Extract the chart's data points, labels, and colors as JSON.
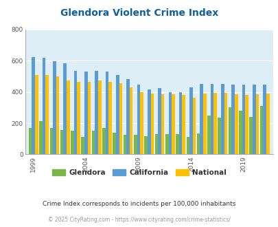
{
  "title": "Glendora Violent Crime Index",
  "title_color": "#1060a0",
  "years": [
    1999,
    2000,
    2001,
    2002,
    2003,
    2004,
    2005,
    2006,
    2007,
    2008,
    2009,
    2010,
    2011,
    2012,
    2013,
    2014,
    2015,
    2016,
    2017,
    2018,
    2019,
    2020,
    2021
  ],
  "glendora": [
    170,
    215,
    170,
    155,
    150,
    110,
    150,
    170,
    140,
    125,
    125,
    115,
    130,
    130,
    130,
    110,
    135,
    250,
    235,
    300,
    280,
    240,
    310
  ],
  "california": [
    625,
    620,
    595,
    585,
    535,
    530,
    535,
    530,
    510,
    480,
    445,
    415,
    425,
    400,
    400,
    430,
    450,
    450,
    450,
    445,
    445,
    445,
    445
  ],
  "national": [
    510,
    510,
    500,
    475,
    465,
    465,
    475,
    465,
    455,
    430,
    400,
    390,
    385,
    385,
    380,
    365,
    390,
    395,
    395,
    385,
    380,
    385,
    390
  ],
  "glendora_color": "#7ab648",
  "california_color": "#5b9bd5",
  "national_color": "#ffc000",
  "bg_color": "#deeef6",
  "ylim": [
    0,
    800
  ],
  "yticks": [
    0,
    200,
    400,
    600,
    800
  ],
  "xtick_years": [
    1999,
    2004,
    2009,
    2014,
    2019
  ],
  "subtitle": "Crime Index corresponds to incidents per 100,000 inhabitants",
  "footer": "© 2025 CityRating.com - https://www.cityrating.com/crime-statistics/",
  "legend_labels": [
    "Glendora",
    "California",
    "National"
  ]
}
